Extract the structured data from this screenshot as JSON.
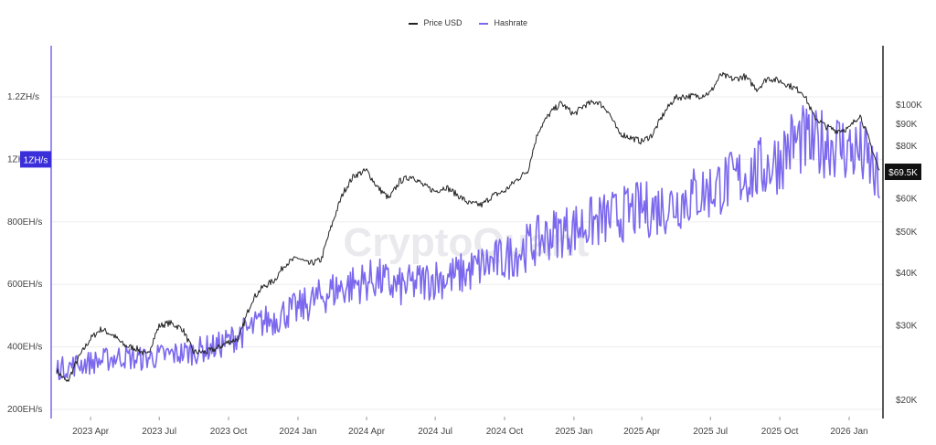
{
  "legend": {
    "price_label": "Price USD",
    "hash_label": "Hashrate",
    "price_color": "#222222",
    "hash_color": "#7b68ee"
  },
  "watermark": "CryptoQuant",
  "chart_data": {
    "type": "line",
    "x_ticks": [
      "2023 Apr",
      "2023 Jul",
      "2023 Oct",
      "2024 Jan",
      "2024 Apr",
      "2024 Jul",
      "2024 Oct",
      "2025 Jan",
      "2025 Apr",
      "2025 Jul",
      "2025 Oct",
      "2026 Jan"
    ],
    "left_axis": {
      "ticks": [
        {
          "label": "200EH/s",
          "value": 200
        },
        {
          "label": "400EH/s",
          "value": 400
        },
        {
          "label": "600EH/s",
          "value": 600
        },
        {
          "label": "800EH/s",
          "value": 800
        },
        {
          "label": "1ZH/s",
          "value": 1000
        },
        {
          "label": "1.2ZH/s",
          "value": 1200
        }
      ],
      "range": [
        200,
        1200
      ],
      "highlight": {
        "label": "1ZH/s",
        "value": 1000
      }
    },
    "right_axis": {
      "scale": "log",
      "ticks": [
        {
          "label": "$20K",
          "value": 20000
        },
        {
          "label": "$30K",
          "value": 30000
        },
        {
          "label": "$40K",
          "value": 40000
        },
        {
          "label": "$50K",
          "value": 50000
        },
        {
          "label": "$60K",
          "value": 60000
        },
        {
          "label": "$80K",
          "value": 80000
        },
        {
          "label": "$90K",
          "value": 90000
        },
        {
          "label": "$100K",
          "value": 100000
        }
      ],
      "current": {
        "label": "$69.5K",
        "value": 69500
      }
    },
    "series": [
      {
        "name": "Price USD",
        "axis": "right",
        "color": "#222222",
        "x": [
          "2023-02-15",
          "2023-03-01",
          "2023-03-15",
          "2023-04-01",
          "2023-04-15",
          "2023-05-01",
          "2023-05-15",
          "2023-06-01",
          "2023-06-15",
          "2023-07-01",
          "2023-07-15",
          "2023-08-01",
          "2023-08-15",
          "2023-09-01",
          "2023-09-15",
          "2023-10-01",
          "2023-10-15",
          "2023-11-01",
          "2023-11-15",
          "2023-12-01",
          "2023-12-15",
          "2024-01-01",
          "2024-01-15",
          "2024-02-01",
          "2024-02-15",
          "2024-03-01",
          "2024-03-15",
          "2024-04-01",
          "2024-04-15",
          "2024-05-01",
          "2024-05-15",
          "2024-06-01",
          "2024-06-15",
          "2024-07-01",
          "2024-07-15",
          "2024-08-01",
          "2024-08-15",
          "2024-09-01",
          "2024-09-15",
          "2024-10-01",
          "2024-10-15",
          "2024-11-01",
          "2024-11-15",
          "2024-12-01",
          "2024-12-15",
          "2025-01-01",
          "2025-01-15",
          "2025-02-01",
          "2025-02-15",
          "2025-03-01",
          "2025-03-15",
          "2025-04-01",
          "2025-04-15",
          "2025-05-01",
          "2025-05-15",
          "2025-06-01",
          "2025-06-15",
          "2025-07-01",
          "2025-07-15",
          "2025-08-01",
          "2025-08-15",
          "2025-09-01",
          "2025-09-15",
          "2025-10-01",
          "2025-10-15",
          "2025-11-01",
          "2025-11-15",
          "2025-12-01",
          "2025-12-15",
          "2026-01-01",
          "2026-01-15",
          "2026-02-01",
          "2026-02-10"
        ],
        "values": [
          23500,
          22000,
          25000,
          28000,
          29500,
          28500,
          27000,
          26500,
          25500,
          30000,
          30500,
          29500,
          26000,
          26000,
          26500,
          27500,
          28000,
          34500,
          37000,
          38500,
          42000,
          43500,
          42000,
          43000,
          52000,
          62000,
          68000,
          70000,
          64000,
          60000,
          66000,
          68000,
          64500,
          62500,
          64000,
          61000,
          58500,
          58000,
          61000,
          62500,
          66000,
          70000,
          87000,
          96000,
          101000,
          95000,
          100000,
          102000,
          97000,
          86000,
          84000,
          82000,
          85000,
          96000,
          104000,
          105000,
          105000,
          107000,
          118000,
          115000,
          117000,
          109000,
          116000,
          114000,
          111000,
          107000,
          94000,
          89000,
          87000,
          88000,
          95000,
          78000,
          69500
        ]
      },
      {
        "name": "Hashrate",
        "axis": "left",
        "color": "#7b68ee",
        "x": [
          "2023-02-15",
          "2023-03-01",
          "2023-03-15",
          "2023-04-01",
          "2023-04-15",
          "2023-05-01",
          "2023-05-15",
          "2023-06-01",
          "2023-06-15",
          "2023-07-01",
          "2023-07-15",
          "2023-08-01",
          "2023-08-15",
          "2023-09-01",
          "2023-09-15",
          "2023-10-01",
          "2023-10-15",
          "2023-11-01",
          "2023-11-15",
          "2023-12-01",
          "2023-12-15",
          "2024-01-01",
          "2024-01-15",
          "2024-02-01",
          "2024-02-15",
          "2024-03-01",
          "2024-03-15",
          "2024-04-01",
          "2024-04-15",
          "2024-05-01",
          "2024-05-15",
          "2024-06-01",
          "2024-06-15",
          "2024-07-01",
          "2024-07-15",
          "2024-08-01",
          "2024-08-15",
          "2024-09-01",
          "2024-09-15",
          "2024-10-01",
          "2024-10-15",
          "2024-11-01",
          "2024-11-15",
          "2024-12-01",
          "2024-12-15",
          "2025-01-01",
          "2025-01-15",
          "2025-02-01",
          "2025-02-15",
          "2025-03-01",
          "2025-03-15",
          "2025-04-01",
          "2025-04-15",
          "2025-05-01",
          "2025-05-15",
          "2025-06-01",
          "2025-06-15",
          "2025-07-01",
          "2025-07-15",
          "2025-08-01",
          "2025-08-15",
          "2025-09-01",
          "2025-09-15",
          "2025-10-01",
          "2025-10-15",
          "2025-11-01",
          "2025-11-15",
          "2025-12-01",
          "2025-12-15",
          "2026-01-01",
          "2026-01-15",
          "2026-02-01",
          "2026-02-10"
        ],
        "values": [
          330,
          335,
          345,
          350,
          355,
          365,
          370,
          360,
          365,
          370,
          375,
          380,
          385,
          395,
          400,
          420,
          440,
          460,
          480,
          490,
          510,
          520,
          540,
          560,
          580,
          590,
          600,
          610,
          620,
          600,
          590,
          600,
          610,
          620,
          620,
          630,
          640,
          660,
          670,
          680,
          700,
          720,
          740,
          760,
          770,
          780,
          790,
          800,
          810,
          820,
          830,
          840,
          840,
          850,
          860,
          880,
          890,
          900,
          920,
          930,
          950,
          960,
          980,
          1000,
          1050,
          1060,
          1040,
          1060,
          1050,
          1030,
          1020,
          970,
          900
        ]
      }
    ]
  }
}
